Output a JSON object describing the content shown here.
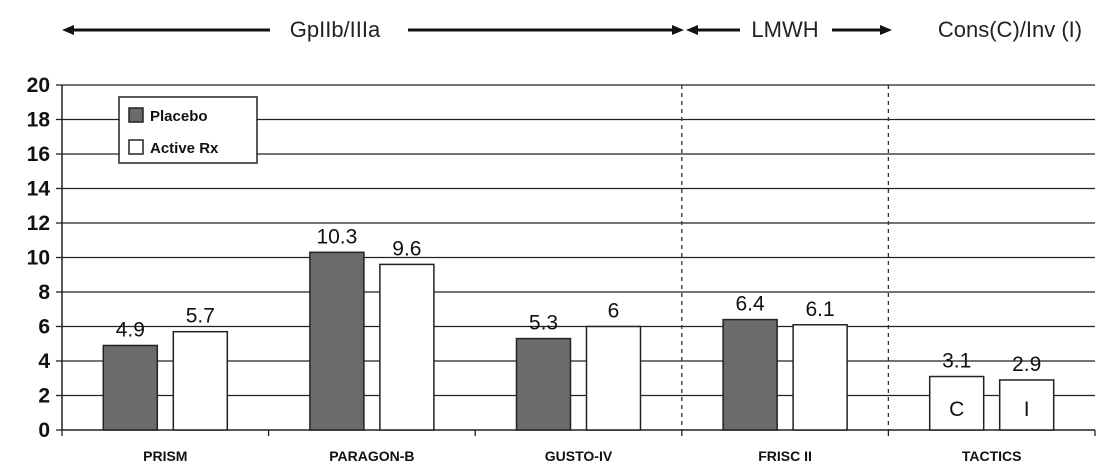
{
  "header": {
    "gp_label": "GpIIb/IIIa",
    "lmwh_label": "LMWH",
    "cons_label": "Cons(C)/Inv (I)"
  },
  "chart_data": {
    "type": "bar",
    "categories": [
      "PRISM",
      "PARAGON-B",
      "GUSTO-IV",
      "FRISC II",
      "TACTICS"
    ],
    "series": [
      {
        "name": "Placebo",
        "values": [
          4.9,
          10.3,
          5.3,
          6.4,
          3.1
        ],
        "value_labels": [
          "4.9",
          "10.3",
          "5.3",
          "6.4",
          "3.1"
        ],
        "color": "#6b6b6b"
      },
      {
        "name": "Active Rx",
        "values": [
          5.7,
          9.6,
          6.0,
          6.1,
          2.9
        ],
        "value_labels": [
          "5.7",
          "9.6",
          "6",
          "6.1",
          "2.9"
        ],
        "color": "#ffffff"
      }
    ],
    "tactics_series_colors": [
      "#ffffff",
      "#ffffff"
    ],
    "bar_text": {
      "TACTICS": [
        "C",
        "I"
      ]
    },
    "yticks": [
      "0",
      "2",
      "4",
      "6",
      "8",
      "10",
      "12",
      "14",
      "16",
      "18",
      "20"
    ],
    "ylim": [
      0,
      20
    ],
    "grid": true,
    "legend": "top-left",
    "group_dividers": [
      "GUSTO-IV|FRISC II",
      "FRISC II|TACTICS"
    ]
  }
}
